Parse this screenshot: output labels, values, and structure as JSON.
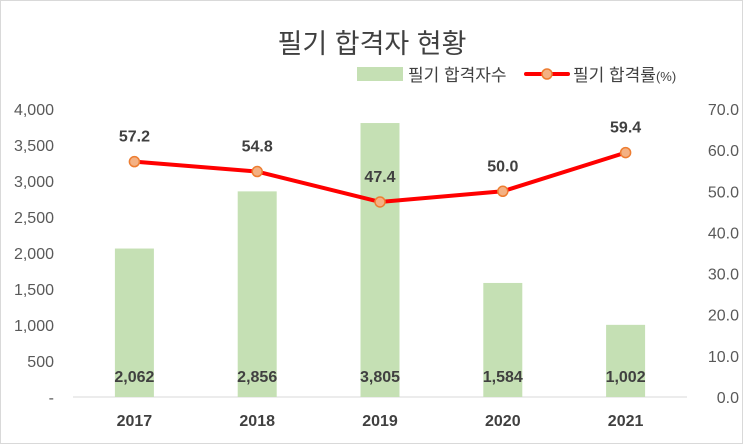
{
  "chart_data": {
    "type": "bar+line",
    "title": "필기 합격자 현황",
    "categories": [
      "2017",
      "2018",
      "2019",
      "2020",
      "2021"
    ],
    "series": [
      {
        "name": "필기 합격자수",
        "type": "bar",
        "axis": "left",
        "color": "#c5e0b4",
        "values": [
          2062,
          2856,
          3805,
          1584,
          1002
        ],
        "labels": [
          "2,062",
          "2,856",
          "3,805",
          "1,584",
          "1,002"
        ]
      },
      {
        "name": "필기 합격률",
        "name_suffix": "(%)",
        "type": "line",
        "axis": "right",
        "color": "#ff0000",
        "marker_fill": "#f4b183",
        "marker_stroke": "#ed7d31",
        "values": [
          57.2,
          54.8,
          47.4,
          50.0,
          59.4
        ],
        "labels": [
          "57.2",
          "54.8",
          "47.4",
          "50.0",
          "59.4"
        ]
      }
    ],
    "y_left": {
      "range": [
        0,
        4000
      ],
      "ticks": [
        0,
        500,
        1000,
        1500,
        2000,
        2500,
        3000,
        3500,
        4000
      ],
      "tick_labels": [
        "-",
        "500",
        "1,000",
        "1,500",
        "2,000",
        "2,500",
        "3,000",
        "3,500",
        "4,000"
      ]
    },
    "y_right": {
      "range": [
        0,
        70
      ],
      "ticks": [
        0,
        10,
        20,
        30,
        40,
        50,
        60,
        70
      ],
      "tick_labels": [
        "0.0",
        "10.0",
        "20.0",
        "30.0",
        "40.0",
        "50.0",
        "60.0",
        "70.0"
      ]
    },
    "grid": false,
    "legend_position": "top-right"
  }
}
